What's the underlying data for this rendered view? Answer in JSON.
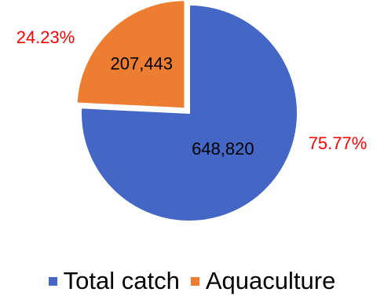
{
  "chart_data": {
    "type": "pie",
    "categories": [
      "Total catch",
      "Aquaculture"
    ],
    "values": [
      648820,
      207443
    ],
    "value_labels": [
      "648,820",
      "207,443"
    ],
    "percent_labels": [
      "75.77%",
      "24.23%"
    ],
    "percentages": [
      75.77,
      24.23
    ],
    "colors": [
      "#4466C4",
      "#ED7D31"
    ],
    "percent_label_color": "#FF0000",
    "legend_position": "bottom",
    "exploded_slice": "Aquaculture"
  }
}
